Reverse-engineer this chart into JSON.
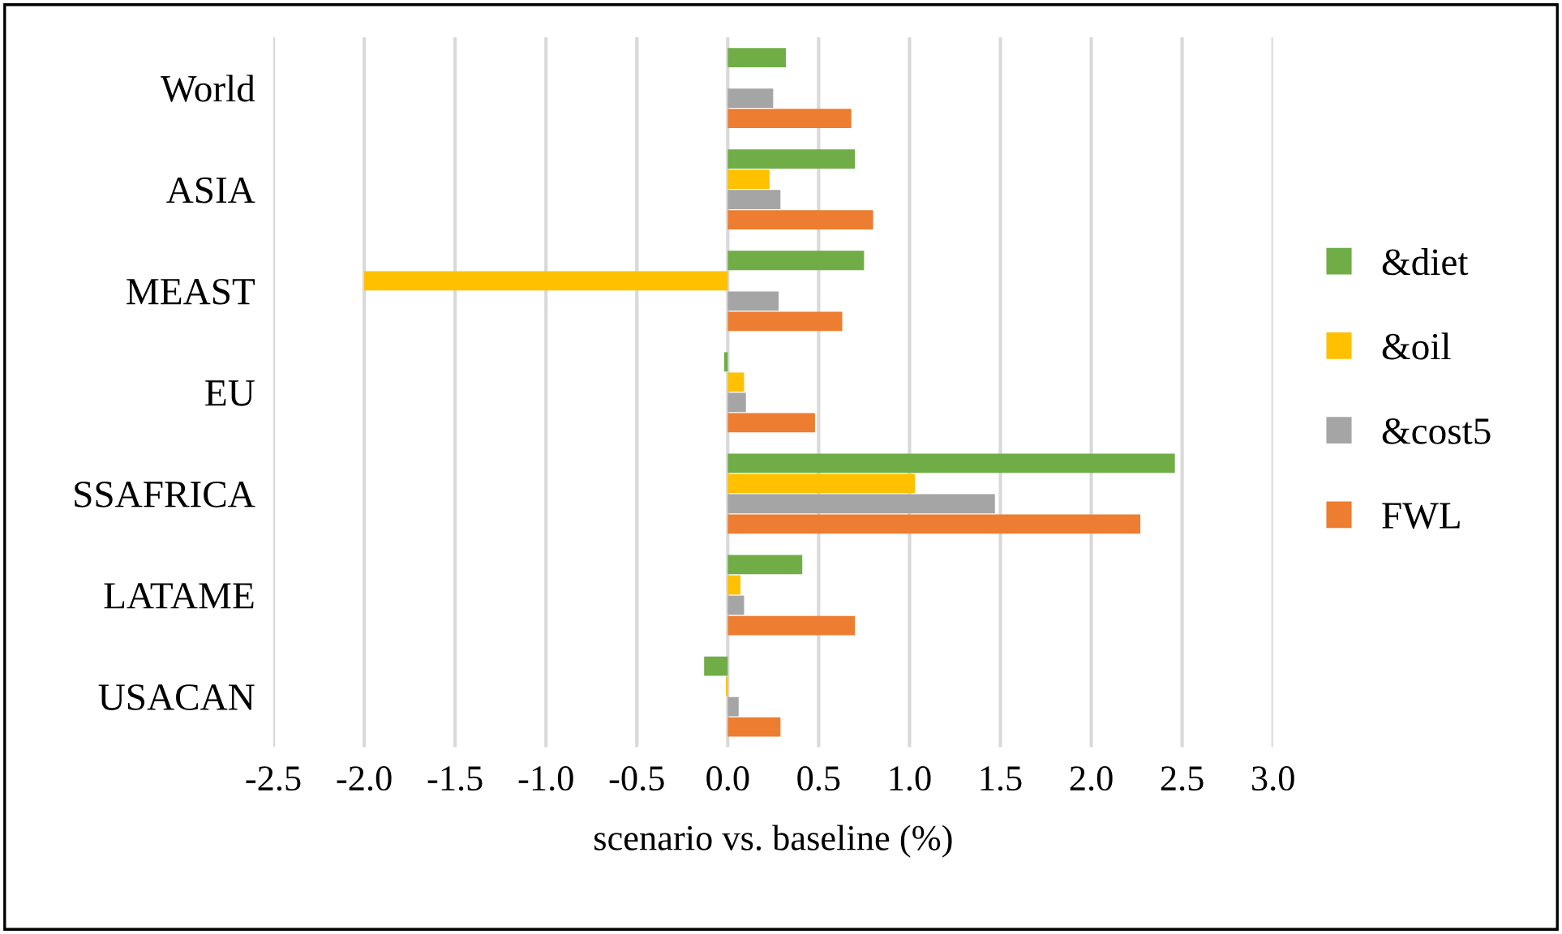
{
  "chart_data": {
    "type": "bar",
    "orientation": "horizontal",
    "xlabel": "scenario vs. baseline (%)",
    "categories": [
      "World",
      "ASIA",
      "MEAST",
      "EU",
      "SSAFRICA",
      "LATAME",
      "USACAN"
    ],
    "series": [
      {
        "name": "&diet",
        "color": "#70ad47",
        "values": [
          0.32,
          0.7,
          0.75,
          -0.02,
          2.46,
          0.41,
          -0.13
        ]
      },
      {
        "name": "&oil",
        "color": "#ffc000",
        "values": [
          0,
          0.23,
          -2.0,
          0.09,
          1.03,
          0.07,
          -0.01
        ]
      },
      {
        "name": "&cost5",
        "color": "#a5a5a5",
        "values": [
          0.25,
          0.29,
          0.28,
          0.1,
          1.47,
          0.09,
          0.06
        ]
      },
      {
        "name": "FWL",
        "color": "#ed7d31",
        "values": [
          0.68,
          0.8,
          0.63,
          0.48,
          2.27,
          0.7,
          0.29
        ]
      }
    ],
    "xlim": [
      -2.5,
      3.0
    ],
    "xticks": [
      {
        "value": -2.5,
        "label": "-2.5"
      },
      {
        "value": -2.0,
        "label": "-2.0"
      },
      {
        "value": -1.5,
        "label": "-1.5"
      },
      {
        "value": -1.0,
        "label": "-1.0"
      },
      {
        "value": -0.5,
        "label": "-0.5"
      },
      {
        "value": 0.0,
        "label": "0.0"
      },
      {
        "value": 0.5,
        "label": "0.5"
      },
      {
        "value": 1.0,
        "label": "1.0"
      },
      {
        "value": 1.5,
        "label": "1.5"
      },
      {
        "value": 2.0,
        "label": "2.0"
      },
      {
        "value": 2.5,
        "label": "2.5"
      },
      {
        "value": 3.0,
        "label": "3.0"
      }
    ],
    "grid": "x",
    "legend": "right"
  }
}
